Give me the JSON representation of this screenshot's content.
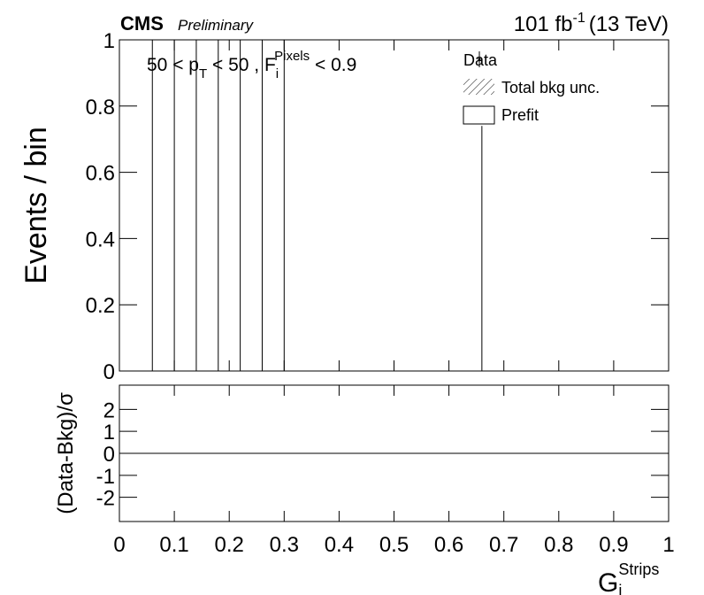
{
  "chart_data": {
    "type": "spike",
    "experiment": "CMS",
    "status": "Preliminary",
    "lumi": {
      "text": "101 fb",
      "sup": "-1",
      "energy": "(13 TeV)"
    },
    "annotation": {
      "a": "50 < p",
      "a_sub": "T",
      "b": " < 50 , F",
      "b_sub": "i",
      "b_sup": "Pixels",
      "c": " < 0.9"
    },
    "x_label": {
      "base": "G",
      "sub": "i",
      "sup": "Strips"
    },
    "y_label": "Events / bin",
    "x": [
      0.06,
      0.1,
      0.14,
      0.18,
      0.22,
      0.26,
      0.3,
      0.66
    ],
    "series": [
      {
        "name": "Data",
        "style": "marker",
        "color": "#000000",
        "values": [
          null,
          null,
          null,
          null,
          null,
          null,
          null,
          null
        ]
      },
      {
        "name": "Total bkg unc.",
        "style": "hatch",
        "color": "#000000",
        "values": [
          null,
          null,
          null,
          null,
          null,
          null,
          null,
          null
        ]
      },
      {
        "name": "Prefit",
        "style": "box",
        "color": "#000000",
        "values": [
          1,
          1,
          1,
          1,
          1,
          1,
          1,
          0.74
        ]
      }
    ],
    "legend_corner": "top right",
    "xlim": [
      0,
      1
    ],
    "xticks": [
      0,
      0.1,
      0.2,
      0.3,
      0.4,
      0.5,
      0.6,
      0.7,
      0.8,
      0.9,
      1
    ],
    "ylim": [
      0,
      1
    ],
    "yticks": [
      0,
      0.2,
      0.4,
      0.6,
      0.8,
      1
    ],
    "ratio": {
      "y_label": "(Data-Bkg)/σ",
      "ylim": [
        -3.1,
        3.1
      ],
      "yticks": [
        -2,
        -1,
        0,
        1,
        2
      ],
      "reference": 0
    }
  }
}
